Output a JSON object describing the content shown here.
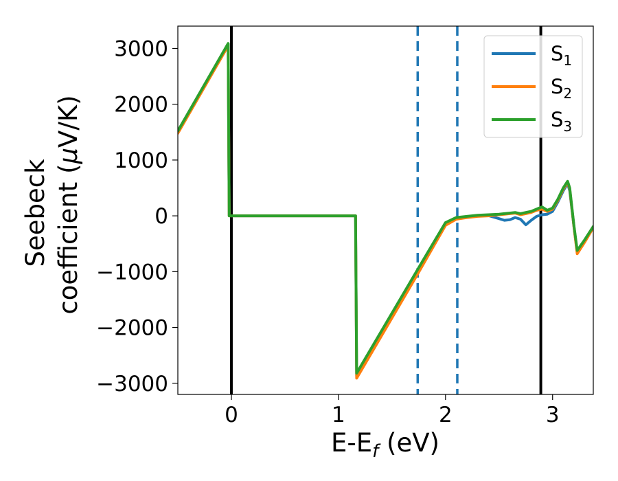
{
  "chart_data": {
    "type": "line",
    "title": "",
    "xlabel": "E-E",
    "xlabel_sub": "f",
    "xlabel_unit": " (eV)",
    "ylabel_line1": "Seebeck",
    "ylabel_line2_prefix": "coefficient  (",
    "ylabel_mu": "μ",
    "ylabel_line2_suffix": "V/K)",
    "xlim": [
      -0.5,
      3.38
    ],
    "ylim": [
      -3200,
      3400
    ],
    "xticks": [
      0,
      1,
      2,
      3
    ],
    "xtick_labels": [
      "0",
      "1",
      "2",
      "3"
    ],
    "yticks": [
      -3000,
      -2000,
      -1000,
      0,
      1000,
      2000,
      3000
    ],
    "ytick_labels": [
      "−3000",
      "−2000",
      "−1000",
      "0",
      "1000",
      "2000",
      "3000"
    ],
    "vlines": [
      {
        "x": 0.0,
        "style": "solid",
        "color": "#000000"
      },
      {
        "x": 2.89,
        "style": "solid",
        "color": "#000000"
      },
      {
        "x": 1.74,
        "style": "dashed",
        "color": "#1f77b4"
      },
      {
        "x": 2.11,
        "style": "dashed",
        "color": "#1f77b4"
      }
    ],
    "legend_position": "top-right",
    "series": [
      {
        "name": "S",
        "sub": "1",
        "color": "#1f77b4",
        "x": [
          -0.5,
          -0.03,
          -0.02,
          1.16,
          1.17,
          1.74,
          2.0,
          2.1,
          2.2,
          2.3,
          2.4,
          2.5,
          2.55,
          2.6,
          2.65,
          2.7,
          2.75,
          2.8,
          2.85,
          2.9,
          2.95,
          3.0,
          3.05,
          3.1,
          3.14,
          3.16,
          3.2,
          3.23,
          3.3,
          3.38
        ],
        "y": [
          1500,
          3080,
          0,
          0,
          -2870,
          -1000,
          -150,
          -50,
          -20,
          0,
          5,
          -50,
          -80,
          -70,
          -30,
          -60,
          -160,
          -80,
          -10,
          20,
          30,
          80,
          250,
          450,
          580,
          450,
          -200,
          -650,
          -450,
          -200
        ]
      },
      {
        "name": "S",
        "sub": "2",
        "color": "#ff7f0e",
        "x": [
          -0.5,
          -0.03,
          -0.02,
          1.16,
          1.17,
          1.74,
          2.0,
          2.1,
          2.2,
          2.3,
          2.4,
          2.5,
          2.55,
          2.6,
          2.65,
          2.7,
          2.75,
          2.8,
          2.85,
          2.9,
          2.95,
          3.0,
          3.05,
          3.1,
          3.14,
          3.16,
          3.2,
          3.23,
          3.3,
          3.38
        ],
        "y": [
          1480,
          3050,
          0,
          0,
          -2910,
          -1040,
          -170,
          -60,
          -30,
          -10,
          0,
          20,
          30,
          40,
          50,
          20,
          40,
          60,
          100,
          120,
          80,
          120,
          280,
          480,
          600,
          480,
          -200,
          -680,
          -470,
          -210
        ]
      },
      {
        "name": "S",
        "sub": "3",
        "color": "#2ca02c",
        "x": [
          -0.5,
          -0.03,
          -0.02,
          1.16,
          1.17,
          1.74,
          2.0,
          2.1,
          2.2,
          2.3,
          2.4,
          2.5,
          2.55,
          2.6,
          2.65,
          2.7,
          2.75,
          2.8,
          2.85,
          2.9,
          2.95,
          3.0,
          3.05,
          3.1,
          3.14,
          3.16,
          3.2,
          3.23,
          3.3,
          3.38
        ],
        "y": [
          1520,
          3090,
          0,
          0,
          -2820,
          -960,
          -120,
          -30,
          -10,
          10,
          20,
          30,
          40,
          50,
          60,
          40,
          60,
          80,
          120,
          160,
          100,
          140,
          300,
          500,
          620,
          500,
          -180,
          -620,
          -430,
          -190
        ]
      }
    ]
  }
}
